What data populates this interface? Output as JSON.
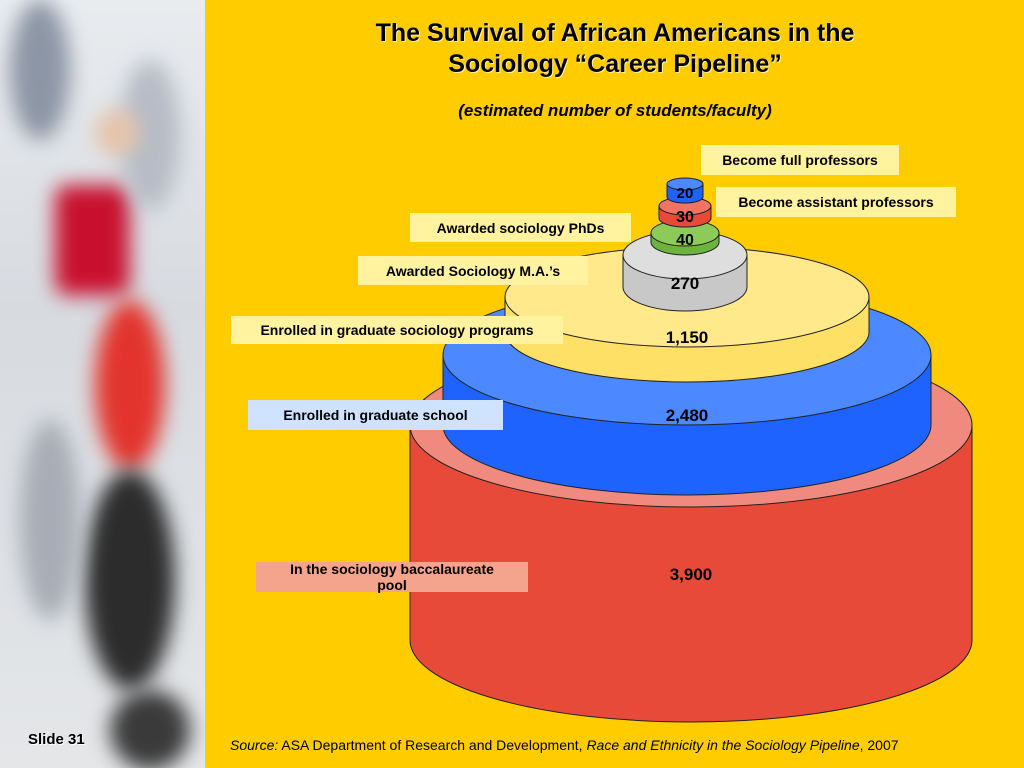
{
  "slide": {
    "title_line1": "The Survival of African Americans in the",
    "title_line2": "Sociology “Career Pipeline”",
    "subtitle": "(estimated number of students/faculty)",
    "slide_number": "Slide 31",
    "source": {
      "prefix": "Source:",
      "org": "ASA Department of Research and Development,",
      "work": "Race and Ethnicity in the Sociology Pipeline",
      "year": ", 2007"
    }
  },
  "colors": {
    "background": "#FFCC00",
    "tier_baccalaureate": "#E84A3A",
    "tier_graduate_school": "#1F63FF",
    "tier_graduate_sociology": "#FFE066",
    "tier_ma": "#C8C8C8",
    "tier_phd": "#6DB33F",
    "tier_assistant": "#E84A3A",
    "tier_full": "#1F63FF"
  },
  "chart_data": {
    "type": "table",
    "categories": [
      "In the sociology baccalaureate pool",
      "Enrolled in graduate school",
      "Enrolled in graduate sociology programs",
      "Awarded Sociology M.A.’s",
      "Awarded sociology PhDs",
      "Become assistant professors",
      "Become full professors"
    ],
    "values": [
      3900,
      2480,
      1150,
      270,
      40,
      30,
      20
    ],
    "value_labels": [
      "3,900",
      "2,480",
      "1,150",
      "270",
      "40",
      "30",
      "20"
    ]
  }
}
